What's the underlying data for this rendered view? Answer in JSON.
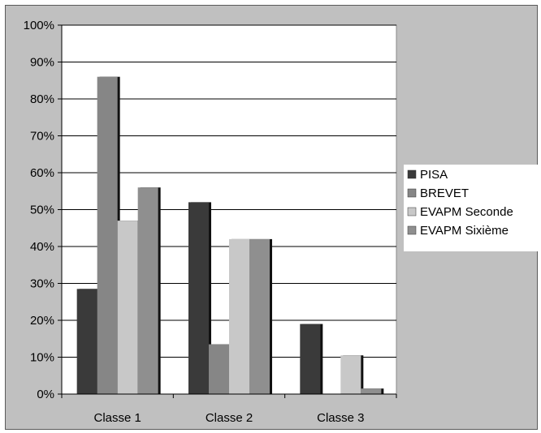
{
  "chart_data": {
    "type": "bar",
    "title": "",
    "xlabel": "",
    "ylabel": "",
    "categories": [
      "Classe 1",
      "Classe 2",
      "Classe 3"
    ],
    "ylim": [
      0,
      1
    ],
    "y_ticks": [
      "0%",
      "10%",
      "20%",
      "30%",
      "40%",
      "50%",
      "60%",
      "70%",
      "80%",
      "90%",
      "100%"
    ],
    "series": [
      {
        "name": "PISA",
        "values": [
          0.285,
          0.52,
          0.19
        ],
        "color": "#3a3a3a"
      },
      {
        "name": "BREVET",
        "values": [
          0.86,
          0.135,
          0.0
        ],
        "color": "#868686"
      },
      {
        "name": "EVAPM Seconde",
        "values": [
          0.47,
          0.42,
          0.105
        ],
        "color": "#c8c8c8"
      },
      {
        "name": "EVAPM Sixième",
        "values": [
          0.56,
          0.42,
          0.015
        ],
        "color": "#8f8f8f"
      }
    ],
    "grid": true,
    "legend_position": "right"
  }
}
